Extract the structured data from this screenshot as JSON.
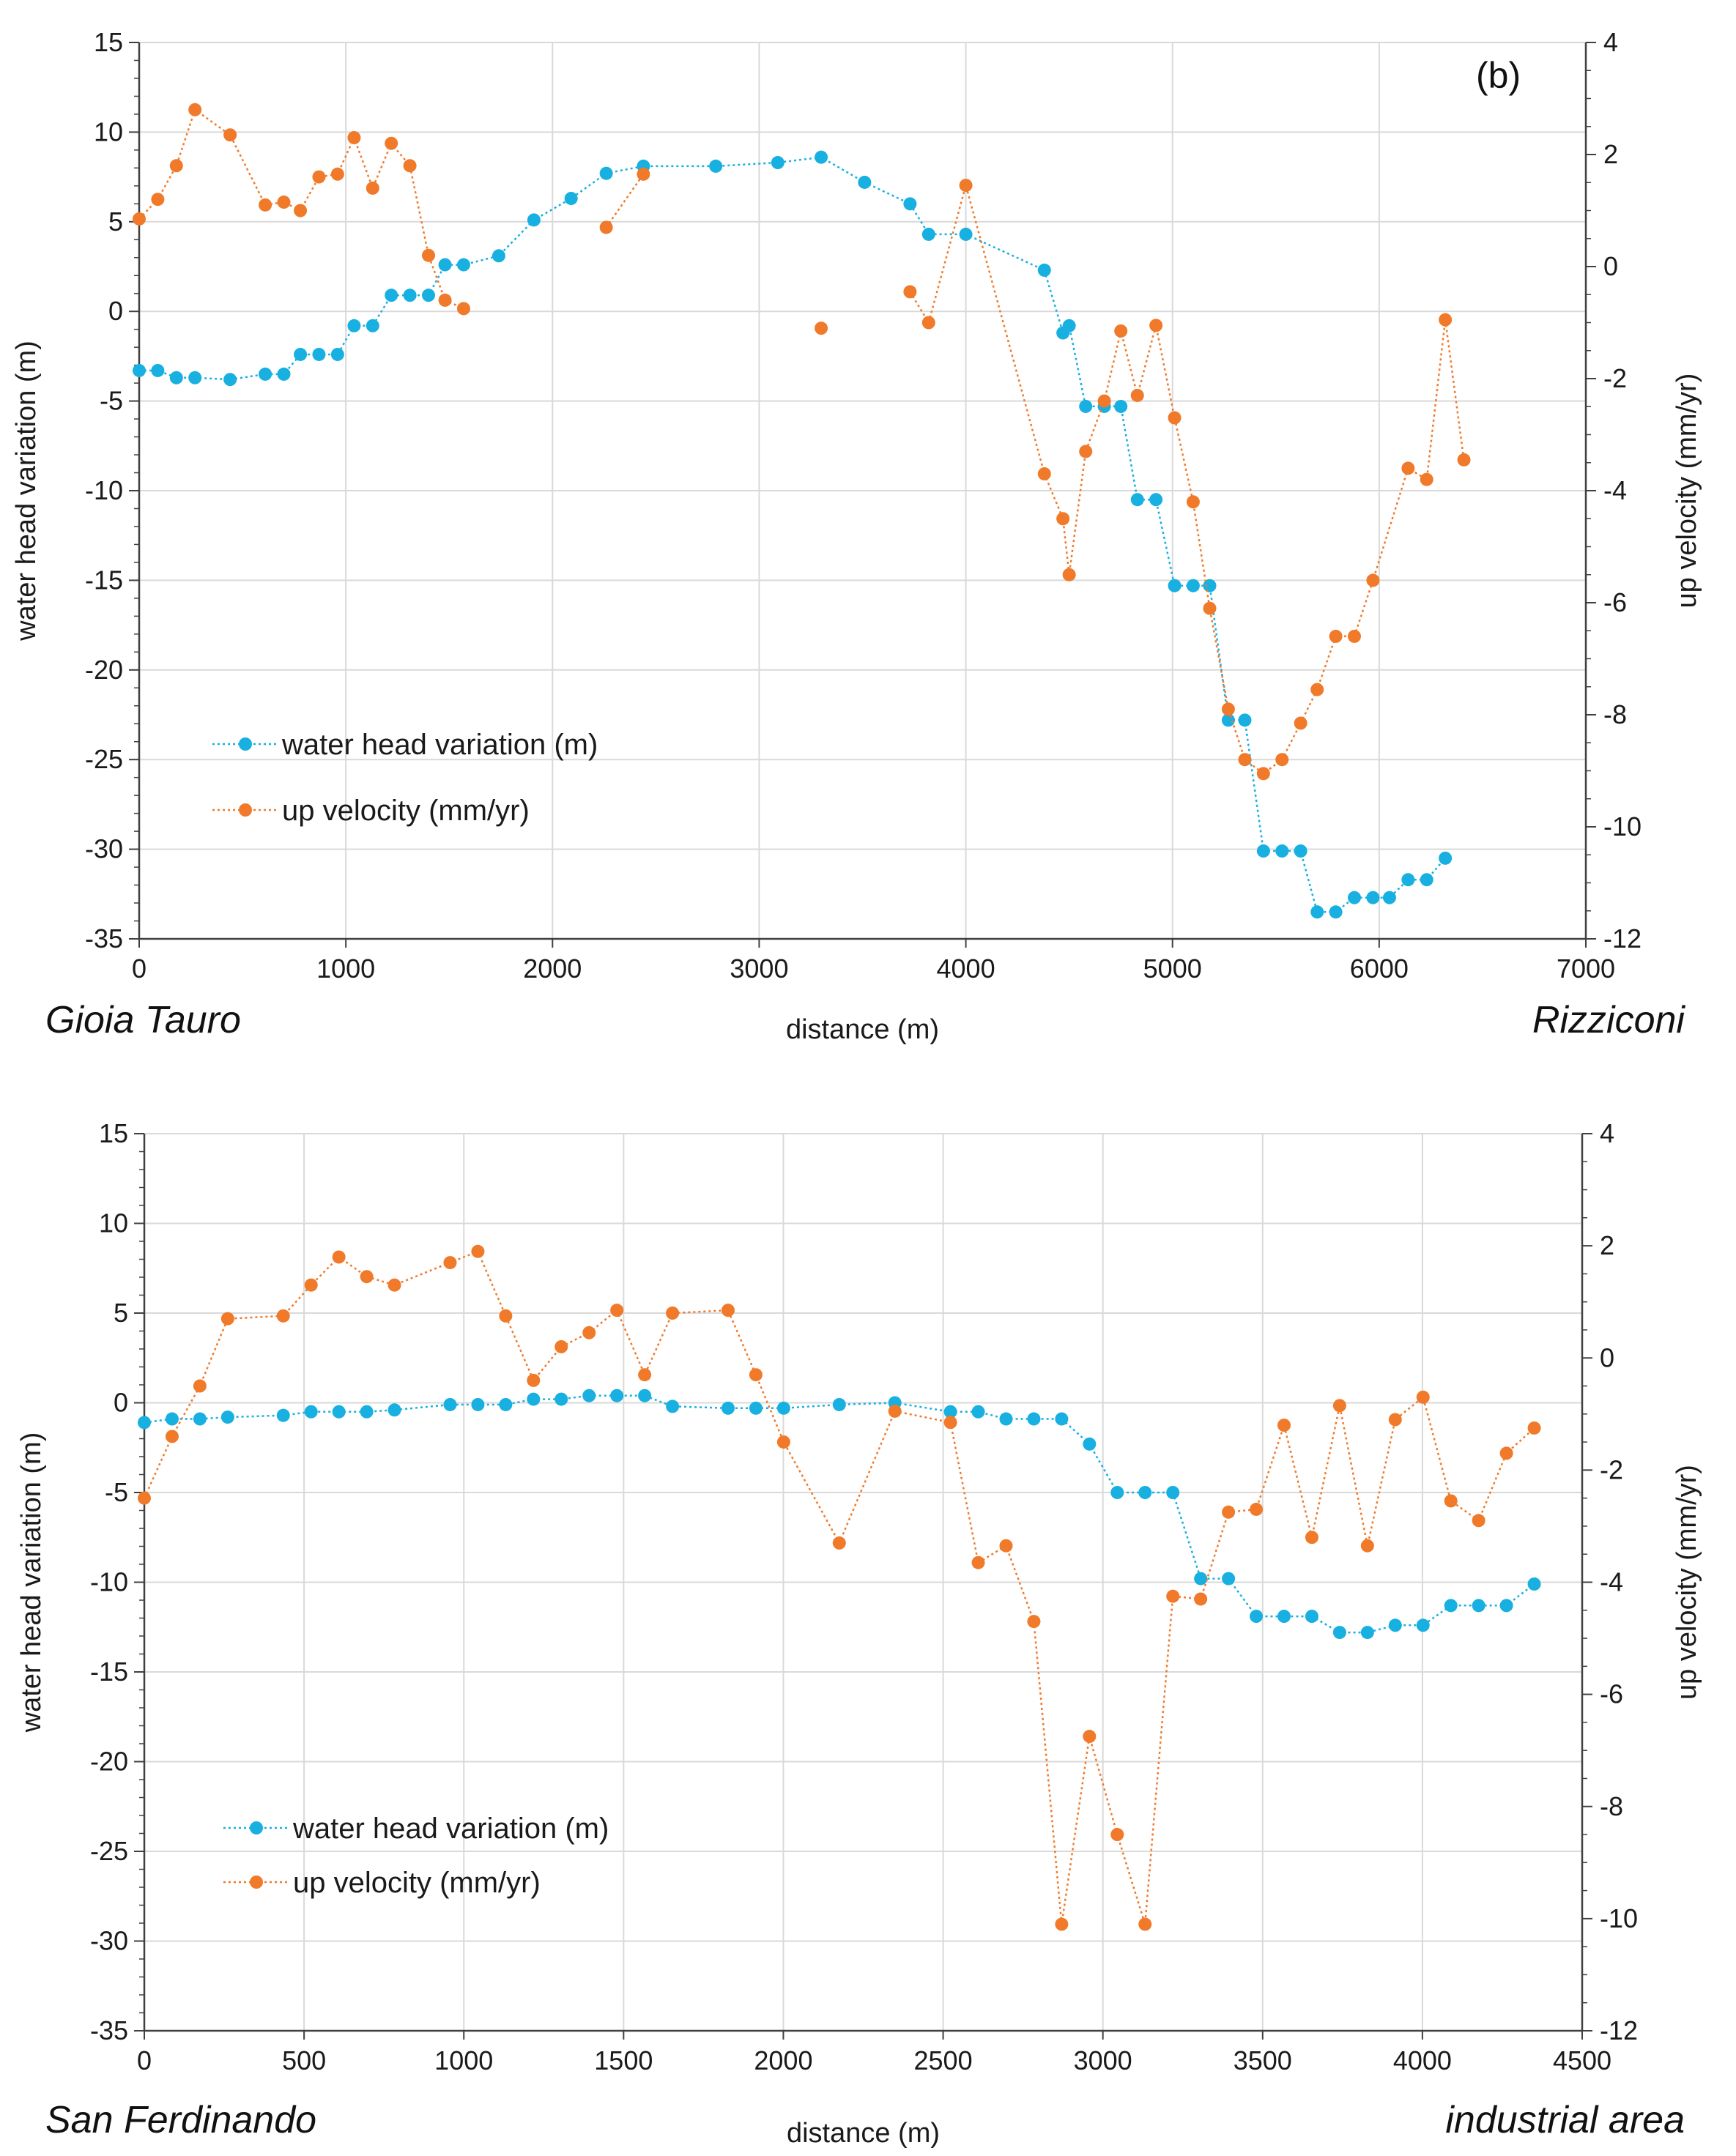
{
  "figure": {
    "colors": {
      "water": "#17b0e0",
      "velocity": "#f07a2a",
      "grid": "#d9d9d9",
      "axis": "#404040"
    }
  },
  "chart_data": [
    {
      "type": "line",
      "panel_label": "(b)",
      "xlabel": "distance (m)",
      "ylabel": "water head variation (m)",
      "y2label": "up velocity (mm/yr)",
      "xlim": [
        0,
        7000
      ],
      "ylim": [
        -35,
        15
      ],
      "y2lim": [
        -12,
        4
      ],
      "xticks": [
        0,
        1000,
        2000,
        3000,
        4000,
        5000,
        6000,
        7000
      ],
      "yticks": [
        15,
        10,
        5,
        0,
        -5,
        -10,
        -15,
        -20,
        -25,
        -30,
        -35
      ],
      "y2ticks": [
        4,
        2,
        0,
        -2,
        -4,
        -6,
        -8,
        -10,
        -12
      ],
      "left_place": "Gioia Tauro",
      "right_place": "Rizziconi",
      "legend": [
        "water head variation (m)",
        "up velocity (mm/yr)"
      ],
      "grid": true,
      "series": [
        {
          "name": "water head variation (m)",
          "axis": "left",
          "points": [
            [
              0,
              -3.3
            ],
            [
              90,
              -3.3
            ],
            [
              180,
              -3.7
            ],
            [
              270,
              -3.7
            ],
            [
              440,
              -3.8
            ],
            [
              610,
              -3.5
            ],
            [
              700,
              -3.5
            ],
            [
              780,
              -2.4
            ],
            [
              870,
              -2.4
            ],
            [
              960,
              -2.4
            ],
            [
              1040,
              -0.8
            ],
            [
              1130,
              -0.8
            ],
            [
              1220,
              0.9
            ],
            [
              1310,
              0.9
            ],
            [
              1400,
              0.9
            ],
            [
              1480,
              2.6
            ],
            [
              1570,
              2.6
            ],
            [
              1740,
              3.1
            ],
            [
              1910,
              5.1
            ],
            [
              2090,
              6.3
            ],
            [
              2260,
              7.7
            ],
            [
              2440,
              8.1
            ],
            [
              2790,
              8.1
            ],
            [
              3090,
              8.3
            ],
            [
              3300,
              8.6
            ],
            [
              3510,
              7.2
            ],
            [
              3730,
              6.0
            ],
            [
              3820,
              4.3
            ],
            [
              4000,
              4.3
            ],
            [
              4380,
              2.3
            ],
            [
              4470,
              -1.2
            ],
            [
              4500,
              -0.8
            ],
            [
              4580,
              -5.3
            ],
            [
              4670,
              -5.3
            ],
            [
              4750,
              -5.3
            ],
            [
              4830,
              -10.5
            ],
            [
              4920,
              -10.5
            ],
            [
              5010,
              -15.3
            ],
            [
              5100,
              -15.3
            ],
            [
              5180,
              -15.3
            ],
            [
              5270,
              -22.8
            ],
            [
              5350,
              -22.8
            ],
            [
              5440,
              -30.1
            ],
            [
              5530,
              -30.1
            ],
            [
              5620,
              -30.1
            ],
            [
              5700,
              -33.5
            ],
            [
              5790,
              -33.5
            ],
            [
              5880,
              -32.7
            ],
            [
              5970,
              -32.7
            ],
            [
              6050,
              -32.7
            ],
            [
              6140,
              -31.7
            ],
            [
              6230,
              -31.7
            ],
            [
              6320,
              -30.5
            ]
          ]
        },
        {
          "name": "up velocity (mm/yr)",
          "axis": "right",
          "segments": [
            [
              [
                0,
                0.85
              ],
              [
                90,
                1.2
              ],
              [
                180,
                1.8
              ],
              [
                270,
                2.8
              ],
              [
                440,
                2.35
              ],
              [
                610,
                1.1
              ],
              [
                700,
                1.15
              ],
              [
                780,
                1.0
              ],
              [
                870,
                1.6
              ],
              [
                960,
                1.65
              ],
              [
                1040,
                2.3
              ],
              [
                1130,
                1.4
              ],
              [
                1220,
                2.2
              ],
              [
                1310,
                1.8
              ],
              [
                1400,
                0.2
              ],
              [
                1480,
                -0.6
              ],
              [
                1570,
                -0.75
              ]
            ],
            [
              [
                2260,
                0.7
              ],
              [
                2440,
                1.65
              ]
            ],
            [
              [
                3300,
                -1.1
              ]
            ],
            [
              [
                3730,
                -0.45
              ],
              [
                3820,
                -1.0
              ],
              [
                4000,
                1.45
              ],
              [
                4380,
                -3.7
              ],
              [
                4470,
                -4.5
              ],
              [
                4500,
                -5.5
              ],
              [
                4580,
                -3.3
              ],
              [
                4670,
                -2.4
              ],
              [
                4750,
                -1.15
              ],
              [
                4830,
                -2.3
              ],
              [
                4920,
                -1.05
              ],
              [
                5010,
                -2.7
              ],
              [
                5100,
                -4.2
              ],
              [
                5180,
                -6.1
              ],
              [
                5270,
                -7.9
              ],
              [
                5350,
                -8.8
              ],
              [
                5440,
                -9.05
              ],
              [
                5530,
                -8.8
              ],
              [
                5620,
                -8.15
              ],
              [
                5700,
                -7.55
              ],
              [
                5790,
                -6.6
              ],
              [
                5880,
                -6.6
              ],
              [
                5970,
                -5.6
              ],
              [
                6140,
                -3.6
              ],
              [
                6230,
                -3.8
              ],
              [
                6320,
                -0.95
              ],
              [
                6410,
                -3.45
              ]
            ]
          ]
        }
      ]
    },
    {
      "type": "line",
      "xlabel": "distance (m)",
      "ylabel": "water head variation (m)",
      "y2label": "up velocity (mm/yr)",
      "xlim": [
        0,
        4500
      ],
      "ylim": [
        -35,
        15
      ],
      "y2lim": [
        -12,
        4
      ],
      "xticks": [
        0,
        500,
        1000,
        1500,
        2000,
        2500,
        3000,
        3500,
        4000,
        4500
      ],
      "yticks": [
        15,
        10,
        5,
        0,
        -5,
        -10,
        -15,
        -20,
        -25,
        -30,
        -35
      ],
      "y2ticks": [
        4,
        2,
        0,
        -2,
        -4,
        -6,
        -8,
        -10,
        -12
      ],
      "left_place": "San Ferdinando",
      "right_place": "industrial area",
      "legend": [
        "water head variation (m)",
        "up velocity (mm/yr)"
      ],
      "grid": true,
      "series": [
        {
          "name": "water head variation (m)",
          "axis": "left",
          "points": [
            [
              0,
              -1.1
            ],
            [
              87,
              -0.9
            ],
            [
              174,
              -0.9
            ],
            [
              261,
              -0.8
            ],
            [
              435,
              -0.7
            ],
            [
              522,
              -0.5
            ],
            [
              609,
              -0.5
            ],
            [
              696,
              -0.5
            ],
            [
              783,
              -0.4
            ],
            [
              957,
              -0.1
            ],
            [
              1044,
              -0.1
            ],
            [
              1131,
              -0.1
            ],
            [
              1218,
              0.2
            ],
            [
              1305,
              0.2
            ],
            [
              1392,
              0.4
            ],
            [
              1479,
              0.4
            ],
            [
              1566,
              0.4
            ],
            [
              1653,
              -0.2
            ],
            [
              1827,
              -0.3
            ],
            [
              1914,
              -0.3
            ],
            [
              2001,
              -0.3
            ],
            [
              2175,
              -0.1
            ],
            [
              2349,
              0.0
            ],
            [
              2523,
              -0.5
            ],
            [
              2610,
              -0.5
            ],
            [
              2697,
              -0.9
            ],
            [
              2784,
              -0.9
            ],
            [
              2871,
              -0.9
            ],
            [
              2958,
              -2.3
            ],
            [
              3045,
              -5.0
            ],
            [
              3132,
              -5.0
            ],
            [
              3219,
              -5.0
            ],
            [
              3306,
              -9.8
            ],
            [
              3393,
              -9.8
            ],
            [
              3480,
              -11.9
            ],
            [
              3567,
              -11.9
            ],
            [
              3654,
              -11.9
            ],
            [
              3741,
              -12.8
            ],
            [
              3828,
              -12.8
            ],
            [
              3915,
              -12.4
            ],
            [
              4002,
              -12.4
            ],
            [
              4089,
              -11.3
            ],
            [
              4176,
              -11.3
            ],
            [
              4263,
              -11.3
            ],
            [
              4350,
              -10.1
            ]
          ]
        },
        {
          "name": "up velocity (mm/yr)",
          "axis": "right",
          "segments": [
            [
              [
                0,
                -2.5
              ],
              [
                87,
                -1.4
              ],
              [
                174,
                -0.5
              ],
              [
                261,
                0.7
              ],
              [
                435,
                0.75
              ],
              [
                522,
                1.3
              ],
              [
                609,
                1.8
              ],
              [
                696,
                1.45
              ],
              [
                783,
                1.3
              ],
              [
                957,
                1.7
              ],
              [
                1044,
                1.9
              ],
              [
                1131,
                0.75
              ],
              [
                1218,
                -0.4
              ],
              [
                1305,
                0.2
              ],
              [
                1392,
                0.45
              ],
              [
                1479,
                0.85
              ],
              [
                1566,
                -0.3
              ],
              [
                1653,
                0.8
              ],
              [
                1827,
                0.85
              ],
              [
                1914,
                -0.3
              ],
              [
                2001,
                -1.5
              ],
              [
                2175,
                -3.3
              ],
              [
                2349,
                -0.95
              ],
              [
                2523,
                -1.15
              ],
              [
                2610,
                -3.65
              ],
              [
                2697,
                -3.35
              ],
              [
                2784,
                -4.7
              ],
              [
                2871,
                -10.1
              ],
              [
                2958,
                -6.75
              ],
              [
                3045,
                -8.5
              ],
              [
                3132,
                -10.1
              ],
              [
                3219,
                -4.25
              ],
              [
                3306,
                -4.3
              ],
              [
                3393,
                -2.75
              ],
              [
                3480,
                -2.7
              ],
              [
                3567,
                -1.2
              ],
              [
                3654,
                -3.2
              ],
              [
                3741,
                -0.85
              ],
              [
                3828,
                -3.35
              ],
              [
                3915,
                -1.1
              ],
              [
                4002,
                -0.7
              ],
              [
                4089,
                -2.55
              ],
              [
                4176,
                -2.9
              ],
              [
                4263,
                -1.7
              ],
              [
                4350,
                -1.25
              ]
            ]
          ]
        }
      ]
    }
  ]
}
